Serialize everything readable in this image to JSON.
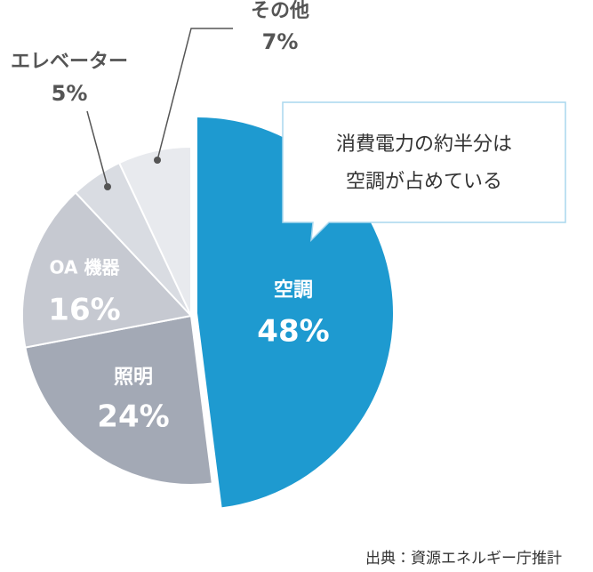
{
  "chart_data": {
    "type": "pie",
    "categories": [
      "空調",
      "照明",
      "OA 機器",
      "エレベーター",
      "その他"
    ],
    "values": [
      48,
      24,
      16,
      5,
      7
    ],
    "value_labels": [
      "48%",
      "24%",
      "16%",
      "5%",
      "7%"
    ],
    "colors": [
      "#1e9ad0",
      "#a3a9b5",
      "#c6c9d1",
      "#d9dce2",
      "#e8eaee"
    ],
    "annotation": [
      "消費電力の約半分は",
      "空調が占めている"
    ],
    "source": "出典：資源エネルギー庁推計"
  }
}
